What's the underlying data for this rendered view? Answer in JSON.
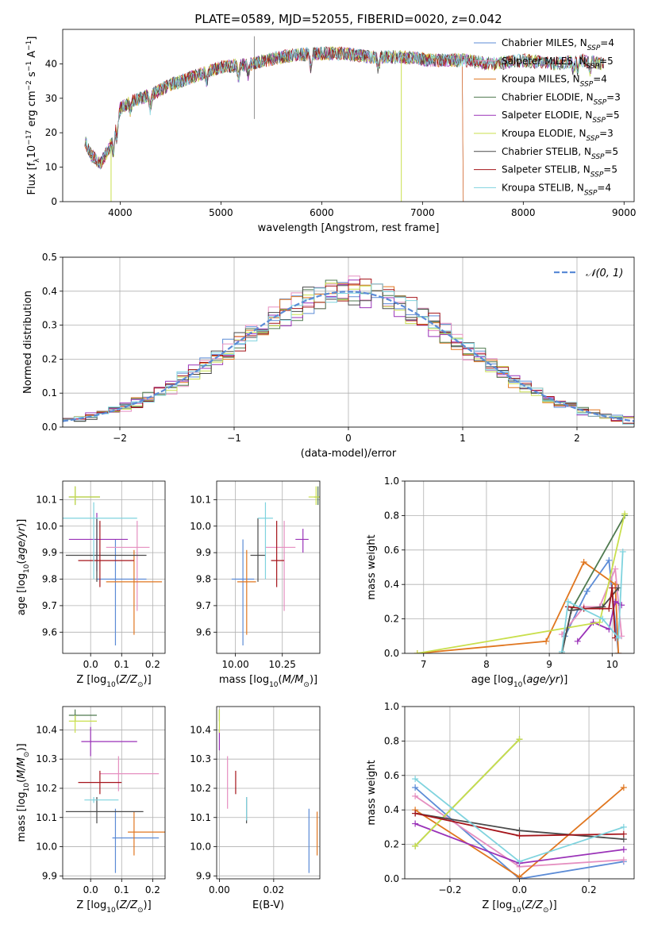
{
  "title": "PLATE=0589, MJD=52055, FIBERID=0020, z=0.042",
  "palette": {
    "chabrier_miles": "#5b8bd6",
    "salpeter_miles": "#e58fc0",
    "kroupa_miles": "#e0761f",
    "chabrier_elodie": "#4f7a4f",
    "salpeter_elodie": "#9a32b8",
    "kroupa_elodie": "#c9df4c",
    "chabrier_stelib": "#4a4a4a",
    "salpeter_stelib": "#a5141a",
    "kroupa_stelib": "#7fd3de"
  },
  "chart_data": [
    {
      "type": "line",
      "title": "PLATE=0589, MJD=52055, FIBERID=0020, z=0.042",
      "xlabel": "wavelength [Angstrom, rest frame]",
      "ylabel": "Flux [f_λ10^-17 erg cm^-2 s^-1 A^-1]",
      "xlim": [
        3430,
        9100
      ],
      "ylim": [
        0,
        50
      ],
      "xticks": [
        "4000",
        "5000",
        "6000",
        "7000",
        "8000",
        "9000"
      ],
      "yticks": [
        "0",
        "10",
        "20",
        "30",
        "40"
      ],
      "grid": false,
      "legend_position": "upper right",
      "series": [
        {
          "name": "Chabrier MILES, N_SSP=4",
          "x_range": [
            3650,
            7400
          ]
        },
        {
          "name": "Salpeter MILES, N_SSP=5",
          "x_range": [
            3650,
            7400
          ]
        },
        {
          "name": "Kroupa MILES, N_SSP=4",
          "x_range": [
            3650,
            7400
          ]
        },
        {
          "name": "Chabrier ELODIE, N_SSP=3",
          "x_range": [
            3650,
            8800
          ]
        },
        {
          "name": "Salpeter ELODIE, N_SSP=5",
          "x_range": [
            3650,
            8800
          ]
        },
        {
          "name": "Kroupa ELODIE, N_SSP=3",
          "x_range": [
            3650,
            8800
          ]
        },
        {
          "name": "Chabrier STELIB, N_SSP=5",
          "x_range": [
            3650,
            8800
          ]
        },
        {
          "name": "Salpeter STELIB, N_SSP=5",
          "x_range": [
            3650,
            8800
          ]
        },
        {
          "name": "Kroupa STELIB, N_SSP=4",
          "x_range": [
            3650,
            8800
          ]
        }
      ],
      "continuum_knots": {
        "x": [
          3650,
          3700,
          3800,
          3900,
          4000,
          4100,
          4300,
          4500,
          4700,
          5000,
          5300,
          5600,
          5900,
          6200,
          6500,
          6800,
          7100,
          7400,
          7700,
          8000,
          8300,
          8600,
          8800
        ],
        "y": [
          18,
          14,
          11,
          16,
          27,
          29,
          31,
          34,
          36,
          39,
          40,
          42,
          43,
          43,
          42,
          42,
          41,
          41,
          40,
          41,
          40,
          41,
          40
        ]
      }
    },
    {
      "type": "histogram",
      "xlabel": "(data-model)/error",
      "ylabel": "Normed distribution",
      "xlim": [
        -2.5,
        2.5
      ],
      "ylim": [
        0,
        0.5
      ],
      "xticks": [
        "−2",
        "−1",
        "0",
        "1",
        "2"
      ],
      "yticks": [
        "0.0",
        "0.1",
        "0.2",
        "0.3",
        "0.4",
        "0.5"
      ],
      "grid": true,
      "legend_position": "upper right",
      "reference_curve": {
        "name": "𝒩(0, 1)"
      },
      "bin_width": 0.1,
      "num_bins": 50
    },
    {
      "type": "scatter",
      "xlabel": "Z [log10(Z/Z⊙)]",
      "ylabel": "age [log10(age/yr)]",
      "xlim": [
        -0.09,
        0.24
      ],
      "ylim": [
        9.52,
        10.17
      ],
      "xticks": [
        "0.0",
        "0.1",
        "0.2"
      ],
      "yticks": [
        "9.6",
        "9.7",
        "9.8",
        "9.9",
        "10.0",
        "10.1"
      ],
      "grid": true,
      "points": [
        {
          "model": "chabrier_miles",
          "x": 0.08,
          "y": 9.8,
          "xerr": [
            0.06,
            0.1
          ],
          "yerr": [
            0.25,
            0.15
          ]
        },
        {
          "model": "salpeter_miles",
          "x": 0.15,
          "y": 9.92,
          "xerr": [
            0.1,
            0.04
          ],
          "yerr": [
            0.24,
            0.1
          ]
        },
        {
          "model": "kroupa_miles",
          "x": 0.14,
          "y": 9.79,
          "xerr": [
            0.09,
            0.09
          ],
          "yerr": [
            0.2,
            0.12
          ]
        },
        {
          "model": "chabrier_elodie",
          "x": -0.05,
          "y": 10.11,
          "xerr": [
            0.02,
            0.08
          ],
          "yerr": [
            0.03,
            0.04
          ]
        },
        {
          "model": "salpeter_elodie",
          "x": 0.02,
          "y": 9.95,
          "xerr": [
            0.09,
            0.1
          ],
          "yerr": [
            0.12,
            0.1
          ]
        },
        {
          "model": "kroupa_elodie",
          "x": -0.05,
          "y": 10.11,
          "xerr": [
            0.02,
            0.08
          ],
          "yerr": [
            0.03,
            0.04
          ]
        },
        {
          "model": "chabrier_stelib",
          "x": 0.02,
          "y": 9.89,
          "xerr": [
            0.1,
            0.16
          ],
          "yerr": [
            0.1,
            0.14
          ]
        },
        {
          "model": "salpeter_stelib",
          "x": 0.03,
          "y": 9.87,
          "xerr": [
            0.07,
            0.11
          ],
          "yerr": [
            0.1,
            0.15
          ]
        },
        {
          "model": "kroupa_stelib",
          "x": 0.01,
          "y": 10.03,
          "xerr": [
            0.1,
            0.14
          ],
          "yerr": [
            0.23,
            0.06
          ]
        }
      ]
    },
    {
      "type": "scatter",
      "xlabel": "mass [log10(M/M⊙)]",
      "ylabel": "",
      "xlim": [
        9.9,
        10.45
      ],
      "ylim": [
        9.52,
        10.17
      ],
      "xticks": [
        "10.00",
        "10.25"
      ],
      "yticks": [
        "9.6",
        "9.7",
        "9.8",
        "9.9",
        "10.0",
        "10.1"
      ],
      "grid": true,
      "points": [
        {
          "model": "chabrier_miles",
          "x": 10.04,
          "y": 9.8,
          "xerr": [
            0.06,
            0.06
          ],
          "yerr": [
            0.25,
            0.15
          ]
        },
        {
          "model": "salpeter_miles",
          "x": 10.26,
          "y": 9.92,
          "xerr": [
            0.1,
            0.06
          ],
          "yerr": [
            0.24,
            0.1
          ]
        },
        {
          "model": "kroupa_miles",
          "x": 10.06,
          "y": 9.79,
          "xerr": [
            0.05,
            0.05
          ],
          "yerr": [
            0.2,
            0.12
          ]
        },
        {
          "model": "chabrier_elodie",
          "x": 10.44,
          "y": 10.11,
          "xerr": [
            0.02,
            0.02
          ],
          "yerr": [
            0.03,
            0.04
          ]
        },
        {
          "model": "salpeter_elodie",
          "x": 10.36,
          "y": 9.95,
          "xerr": [
            0.04,
            0.03
          ],
          "yerr": [
            0.05,
            0.04
          ]
        },
        {
          "model": "kroupa_elodie",
          "x": 10.43,
          "y": 10.11,
          "xerr": [
            0.04,
            0.02
          ],
          "yerr": [
            0.03,
            0.04
          ]
        },
        {
          "model": "chabrier_stelib",
          "x": 10.12,
          "y": 9.89,
          "xerr": [
            0.04,
            0.04
          ],
          "yerr": [
            0.1,
            0.14
          ]
        },
        {
          "model": "salpeter_stelib",
          "x": 10.22,
          "y": 9.87,
          "xerr": [
            0.03,
            0.04
          ],
          "yerr": [
            0.1,
            0.15
          ]
        },
        {
          "model": "kroupa_stelib",
          "x": 10.16,
          "y": 10.03,
          "xerr": [
            0.04,
            0.04
          ],
          "yerr": [
            0.23,
            0.06
          ]
        }
      ]
    },
    {
      "type": "line",
      "xlabel": "age [log10(age/yr)]",
      "ylabel": "mass weight",
      "xlim": [
        6.7,
        10.35
      ],
      "ylim": [
        0,
        1.0
      ],
      "xticks": [
        "7",
        "8",
        "9",
        "10"
      ],
      "yticks": [
        "0.0",
        "0.2",
        "0.4",
        "0.6",
        "0.8",
        "1.0"
      ],
      "grid": true,
      "series": [
        {
          "model": "chabrier_miles",
          "x": [
            9.25,
            9.6,
            9.95,
            10.1
          ],
          "y": [
            0.1,
            0.36,
            0.54,
            0.0
          ]
        },
        {
          "model": "salpeter_miles",
          "x": [
            9.2,
            9.55,
            9.8,
            10.05,
            10.15
          ],
          "y": [
            0.11,
            0.27,
            0.27,
            0.49,
            0.1
          ]
        },
        {
          "model": "kroupa_miles",
          "x": [
            6.9,
            8.95,
            9.55,
            10.05,
            10.1
          ],
          "y": [
            0.0,
            0.07,
            0.53,
            0.4,
            0.0
          ]
        },
        {
          "model": "chabrier_elodie",
          "x": [
            9.2,
            9.35,
            10.2
          ],
          "y": [
            0.0,
            0.25,
            0.8
          ]
        },
        {
          "model": "salpeter_elodie",
          "x": [
            9.45,
            9.7,
            9.95,
            10.05,
            10.15
          ],
          "y": [
            0.07,
            0.18,
            0.14,
            0.3,
            0.28
          ]
        },
        {
          "model": "kroupa_elodie",
          "x": [
            6.9,
            9.8,
            10.2
          ],
          "y": [
            0.0,
            0.18,
            0.81
          ]
        },
        {
          "model": "chabrier_stelib",
          "x": [
            9.2,
            9.35,
            9.85,
            10.1
          ],
          "y": [
            0.0,
            0.25,
            0.27,
            0.38
          ]
        },
        {
          "model": "salpeter_stelib",
          "x": [
            9.3,
            9.55,
            9.95,
            10.0,
            10.05
          ],
          "y": [
            0.27,
            0.26,
            0.26,
            0.38,
            0.09
          ]
        },
        {
          "model": "kroupa_stelib",
          "x": [
            9.2,
            9.3,
            9.85,
            10.1,
            10.17
          ],
          "y": [
            0.01,
            0.3,
            0.2,
            0.09,
            0.59
          ]
        }
      ]
    },
    {
      "type": "scatter",
      "xlabel": "Z [log10(Z/Z⊙)]",
      "ylabel": "mass [log10(M/M⊙)]",
      "xlim": [
        -0.09,
        0.24
      ],
      "ylim": [
        9.89,
        10.48
      ],
      "xticks": [
        "0.0",
        "0.1",
        "0.2"
      ],
      "yticks": [
        "9.9",
        "10.0",
        "10.1",
        "10.2",
        "10.3",
        "10.4"
      ],
      "grid": true,
      "points": [
        {
          "model": "chabrier_miles",
          "x": 0.08,
          "y": 10.03,
          "xerr": [
            0.01,
            0.14
          ],
          "yerr": [
            0.12,
            0.1
          ]
        },
        {
          "model": "salpeter_miles",
          "x": 0.09,
          "y": 10.25,
          "xerr": [
            0.06,
            0.13
          ],
          "yerr": [
            0.06,
            0.06
          ]
        },
        {
          "model": "kroupa_miles",
          "x": 0.14,
          "y": 10.05,
          "xerr": [
            0.02,
            0.1
          ],
          "yerr": [
            0.08,
            0.07
          ]
        },
        {
          "model": "chabrier_elodie",
          "x": -0.05,
          "y": 10.45,
          "xerr": [
            0.02,
            0.07
          ],
          "yerr": [
            0.02,
            0.02
          ]
        },
        {
          "model": "salpeter_elodie",
          "x": 0.0,
          "y": 10.36,
          "xerr": [
            0.03,
            0.15
          ],
          "yerr": [
            0.05,
            0.05
          ]
        },
        {
          "model": "kroupa_elodie",
          "x": -0.05,
          "y": 10.43,
          "xerr": [
            0.02,
            0.07
          ],
          "yerr": [
            0.04,
            0.02
          ]
        },
        {
          "model": "chabrier_stelib",
          "x": 0.02,
          "y": 10.12,
          "xerr": [
            0.1,
            0.15
          ],
          "yerr": [
            0.04,
            0.05
          ]
        },
        {
          "model": "salpeter_stelib",
          "x": 0.03,
          "y": 10.22,
          "xerr": [
            0.07,
            0.07
          ],
          "yerr": [
            0.04,
            0.04
          ]
        },
        {
          "model": "kroupa_stelib",
          "x": 0.01,
          "y": 10.16,
          "xerr": [
            0.03,
            0.08
          ],
          "yerr": [
            0.01,
            0.01
          ]
        }
      ]
    },
    {
      "type": "scatter",
      "xlabel": "E(B-V)",
      "ylabel": "",
      "xlim": [
        -0.001,
        0.037
      ],
      "ylim": [
        9.89,
        10.48
      ],
      "xticks": [
        "0.00",
        "0.02"
      ],
      "yticks": [
        "9.9",
        "10.0",
        "10.1",
        "10.2",
        "10.3",
        "10.4"
      ],
      "grid": true,
      "points": [
        {
          "model": "chabrier_miles",
          "x": 0.033,
          "y": 10.03,
          "xerr": [
            0,
            0
          ],
          "yerr": [
            0.12,
            0.1
          ]
        },
        {
          "model": "salpeter_miles",
          "x": 0.003,
          "y": 10.22,
          "xerr": [
            0,
            0
          ],
          "yerr": [
            0.09,
            0.09
          ]
        },
        {
          "model": "kroupa_miles",
          "x": 0.036,
          "y": 10.05,
          "xerr": [
            0,
            0
          ],
          "yerr": [
            0.08,
            0.07
          ]
        },
        {
          "model": "chabrier_elodie",
          "x": 0.0,
          "y": 10.45,
          "xerr": [
            0,
            0
          ],
          "yerr": [
            0.02,
            0.02
          ]
        },
        {
          "model": "salpeter_elodie",
          "x": 0.0,
          "y": 10.36,
          "xerr": [
            0,
            0
          ],
          "yerr": [
            0.03,
            0.04
          ]
        },
        {
          "model": "kroupa_elodie",
          "x": 0.0,
          "y": 10.43,
          "xerr": [
            0,
            0
          ],
          "yerr": [
            0.04,
            0.04
          ]
        },
        {
          "model": "chabrier_stelib",
          "x": 0.01,
          "y": 10.12,
          "xerr": [
            0,
            0
          ],
          "yerr": [
            0.04,
            0.05
          ]
        },
        {
          "model": "salpeter_stelib",
          "x": 0.006,
          "y": 10.22,
          "xerr": [
            0,
            0
          ],
          "yerr": [
            0.04,
            0.04
          ]
        },
        {
          "model": "kroupa_stelib",
          "x": 0.01,
          "y": 10.12,
          "xerr": [
            0,
            0
          ],
          "yerr": [
            0.03,
            0.05
          ]
        }
      ]
    },
    {
      "type": "line",
      "xlabel": "Z [log10(Z/Z⊙)]",
      "ylabel": "mass weight",
      "xlim": [
        -0.33,
        0.33
      ],
      "ylim": [
        0,
        1.0
      ],
      "xticks": [
        "−0.2",
        "0.0",
        "0.2"
      ],
      "yticks": [
        "0.0",
        "0.2",
        "0.4",
        "0.6",
        "0.8",
        "1.0"
      ],
      "grid": true,
      "series": [
        {
          "model": "chabrier_miles",
          "x": [
            -0.3,
            0.0,
            0.3
          ],
          "y": [
            0.53,
            0.0,
            0.1
          ]
        },
        {
          "model": "salpeter_miles",
          "x": [
            -0.3,
            0.0,
            0.3
          ],
          "y": [
            0.48,
            0.07,
            0.11
          ]
        },
        {
          "model": "kroupa_miles",
          "x": [
            -0.3,
            0.0,
            0.3
          ],
          "y": [
            0.4,
            0.01,
            0.53
          ]
        },
        {
          "model": "chabrier_elodie",
          "x": [
            -0.3,
            0.0
          ],
          "y": [
            0.19,
            0.81
          ]
        },
        {
          "model": "salpeter_elodie",
          "x": [
            -0.3,
            0.0,
            0.3
          ],
          "y": [
            0.32,
            0.09,
            0.17
          ]
        },
        {
          "model": "kroupa_elodie",
          "x": [
            -0.3,
            0.0
          ],
          "y": [
            0.19,
            0.81
          ]
        },
        {
          "model": "chabrier_stelib",
          "x": [
            -0.3,
            0.0,
            0.3
          ],
          "y": [
            0.38,
            0.28,
            0.23
          ]
        },
        {
          "model": "salpeter_stelib",
          "x": [
            -0.3,
            0.0,
            0.3
          ],
          "y": [
            0.38,
            0.25,
            0.26
          ]
        },
        {
          "model": "kroupa_stelib",
          "x": [
            -0.3,
            0.0,
            0.3
          ],
          "y": [
            0.58,
            0.1,
            0.3
          ]
        }
      ]
    }
  ]
}
